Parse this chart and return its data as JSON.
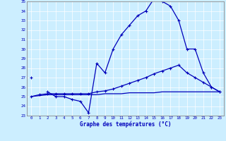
{
  "title": "Graphe des températures (°C)",
  "bg_color": "#cceeff",
  "line_color": "#0000bb",
  "x_min": 0,
  "x_max": 23,
  "y_min": 23,
  "y_max": 35,
  "series1": [
    27,
    null,
    25.5,
    25.0,
    25.0,
    24.7,
    24.5,
    23.3,
    28.5,
    27.5,
    30.0,
    31.5,
    32.5,
    33.5,
    34.0,
    35.3,
    35.0,
    34.5,
    33.0,
    30.0,
    30.0,
    27.5,
    26.0,
    25.5
  ],
  "series2": [
    25.0,
    25.2,
    25.3,
    25.3,
    25.3,
    25.3,
    25.3,
    25.3,
    25.5,
    25.6,
    25.8,
    26.1,
    26.4,
    26.7,
    27.0,
    27.4,
    27.7,
    28.0,
    28.3,
    27.5,
    27.0,
    26.5,
    26.0,
    25.5
  ],
  "series3": [
    25.0,
    25.1,
    25.2,
    25.2,
    25.2,
    25.2,
    25.2,
    25.2,
    25.2,
    25.3,
    25.3,
    25.3,
    25.4,
    25.4,
    25.4,
    25.4,
    25.5,
    25.5,
    25.5,
    25.5,
    25.5,
    25.5,
    25.5,
    25.5
  ]
}
